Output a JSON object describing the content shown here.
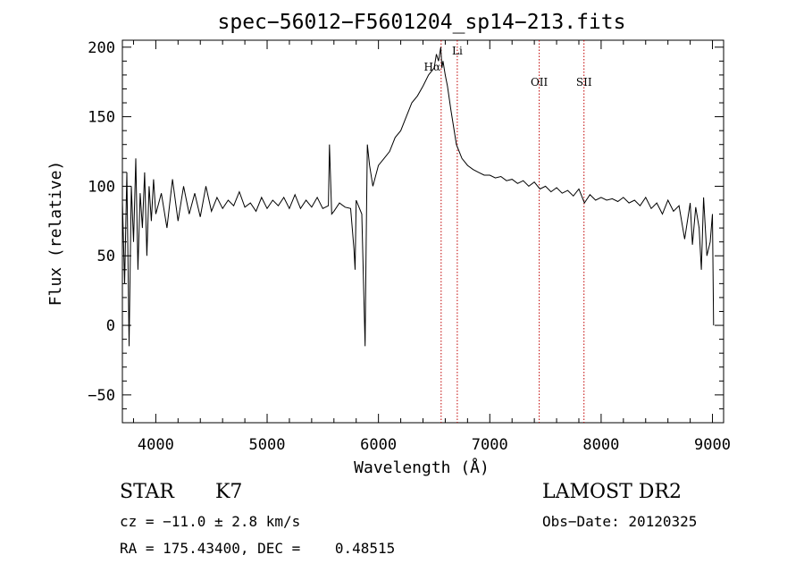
{
  "chart_data": {
    "type": "line",
    "title": "spec−56012−F5601204_sp14−213.fits",
    "xlabel": "Wavelength (Å)",
    "ylabel": "Flux (relative)",
    "xlim": [
      3700,
      9100
    ],
    "ylim": [
      -70,
      205
    ],
    "xticks": [
      4000,
      5000,
      6000,
      7000,
      8000,
      9000
    ],
    "yticks": [
      -50,
      0,
      50,
      100,
      150,
      200
    ],
    "grid": false,
    "series": [
      {
        "x": [
          3700,
          3720,
          3740,
          3760,
          3780,
          3800,
          3820,
          3840,
          3860,
          3880,
          3900,
          3920,
          3940,
          3960,
          3980,
          4000,
          4050,
          4100,
          4150,
          4200,
          4250,
          4300,
          4350,
          4400,
          4450,
          4500,
          4550,
          4600,
          4650,
          4700,
          4750,
          4800,
          4850,
          4900,
          4950,
          5000,
          5050,
          5100,
          5150,
          5200,
          5250,
          5300,
          5350,
          5400,
          5450,
          5500,
          5550,
          5560,
          5580,
          5600,
          5650,
          5700,
          5750,
          5780,
          5790,
          5800,
          5820,
          5850,
          5880,
          5890,
          5900,
          5920,
          5950,
          6000,
          6050,
          6100,
          6150,
          6200,
          6250,
          6300,
          6350,
          6400,
          6450,
          6500,
          6520,
          6540,
          6560,
          6570,
          6580,
          6600,
          6620,
          6650,
          6700,
          6750,
          6800,
          6850,
          6900,
          6950,
          7000,
          7050,
          7100,
          7150,
          7200,
          7250,
          7300,
          7350,
          7400,
          7450,
          7500,
          7550,
          7600,
          7650,
          7700,
          7750,
          7800,
          7850,
          7900,
          7950,
          8000,
          8050,
          8100,
          8150,
          8200,
          8250,
          8300,
          8350,
          8400,
          8450,
          8500,
          8550,
          8600,
          8650,
          8700,
          8750,
          8800,
          8820,
          8850,
          8880,
          8900,
          8920,
          8950,
          8980,
          9000,
          9010
        ],
        "values": [
          90,
          30,
          110,
          -15,
          100,
          60,
          120,
          40,
          95,
          70,
          110,
          50,
          100,
          75,
          105,
          80,
          95,
          70,
          105,
          75,
          100,
          80,
          95,
          78,
          100,
          82,
          92,
          84,
          90,
          86,
          96,
          85,
          88,
          82,
          92,
          84,
          90,
          86,
          92,
          84,
          94,
          84,
          90,
          85,
          92,
          84,
          86,
          130,
          80,
          82,
          88,
          85,
          84,
          55,
          40,
          90,
          86,
          80,
          -15,
          60,
          130,
          115,
          100,
          115,
          120,
          125,
          135,
          140,
          150,
          160,
          165,
          172,
          180,
          185,
          195,
          190,
          200,
          185,
          190,
          180,
          172,
          155,
          130,
          120,
          115,
          112,
          110,
          108,
          108,
          106,
          107,
          104,
          105,
          102,
          104,
          100,
          103,
          98,
          100,
          96,
          99,
          95,
          97,
          93,
          98,
          88,
          94,
          90,
          92,
          90,
          91,
          89,
          92,
          88,
          90,
          86,
          92,
          84,
          88,
          80,
          90,
          82,
          86,
          62,
          88,
          58,
          85,
          70,
          40,
          92,
          50,
          60,
          80,
          0
        ]
      }
    ],
    "line_markers": [
      {
        "label": "Hα",
        "x": 6563
      },
      {
        "label": "Li",
        "x": 6708
      },
      {
        "label": "OII",
        "x": 7444
      },
      {
        "label": "SII",
        "x": 7846
      }
    ]
  },
  "info": {
    "class_label": "STAR",
    "subclass_label": "K7",
    "cz_text": "cz = −11.0 ± 2.8 km/s",
    "radec_text": "RA = 175.43400, DEC =    0.48515",
    "survey_label": "LAMOST DR2",
    "obsdate_text": "Obs−Date: 20120325"
  }
}
